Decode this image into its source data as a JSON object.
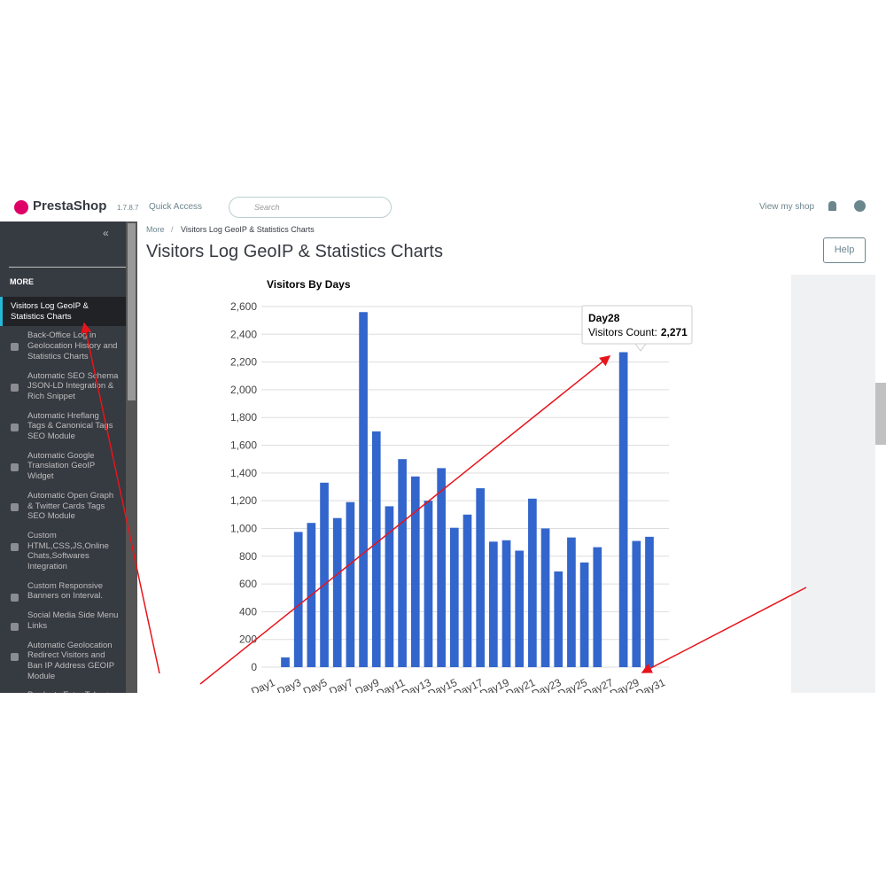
{
  "header": {
    "logo": "PrestaShop",
    "version": "1.7.8.7",
    "quick_access": "Quick Access",
    "search": "Search",
    "view_shop": "View my shop"
  },
  "breadcrumb": [
    "More",
    "Visitors Log GeoIP & Statistics Charts"
  ],
  "page_title": "Visitors Log GeoIP & Statistics Charts",
  "help": "Help",
  "sidebar": {
    "section": "MORE",
    "items": [
      "Visitors Log GeoIP & Statistics Charts",
      "Back-Office Log in Geolocation History and Statistics Charts",
      "Automatic SEO Schema JSON-LD Integration & Rich Snippet",
      "Automatic Hreflang Tags & Canonical Tags SEO Module",
      "Automatic Google Translation GeoIP Widget",
      "Automatic Open Graph & Twitter Cards Tags SEO Module",
      "Custom HTML,CSS,JS,Online Chats,Softwares Integration",
      "Custom Responsive Banners on Interval.",
      "Social Media Side Menu Links",
      "Automatic Geolocation Redirect Visitors and Ban IP Address GEOIP Module",
      "Products Extra Tabs +"
    ]
  },
  "chart_data": {
    "type": "bar",
    "title": "Visitors By Days",
    "color": "#3366cc",
    "grid": true,
    "categories": [
      "Day1",
      null,
      "Day3",
      null,
      "Day5",
      null,
      "Day7",
      null,
      "Day9",
      null,
      "Day11",
      null,
      "Day13",
      null,
      "Day15",
      null,
      "Day17",
      null,
      "Day19",
      null,
      "Day21",
      null,
      "Day23",
      null,
      "Day25",
      null,
      "Day27",
      null,
      "Day29",
      null,
      "Day31"
    ],
    "values": [
      0,
      70,
      975,
      1040,
      1330,
      1075,
      1190,
      2560,
      1700,
      1160,
      1500,
      1375,
      1200,
      1435,
      1005,
      1100,
      1290,
      905,
      915,
      840,
      1215,
      1000,
      690,
      935,
      755,
      865,
      0,
      2271,
      910,
      940,
      0
    ],
    "ylim": [
      0,
      2600
    ],
    "yticks": [
      0,
      200,
      400,
      600,
      800,
      {
        "value": 1000,
        "label": "1,000"
      },
      {
        "value": 1200,
        "label": "1,200"
      },
      {
        "value": 1400,
        "label": "1,400"
      },
      {
        "value": 1600,
        "label": "1,600"
      },
      {
        "value": 1800,
        "label": "1,800"
      },
      {
        "value": 2000,
        "label": "2,000"
      },
      {
        "value": 2200,
        "label": "2,200"
      },
      {
        "value": 2400,
        "label": "2,400"
      },
      {
        "value": 2600,
        "label": "2,600"
      }
    ],
    "tooltip": {
      "category": "Day28",
      "label": "Visitors Count:",
      "value_label": "2,271"
    }
  }
}
